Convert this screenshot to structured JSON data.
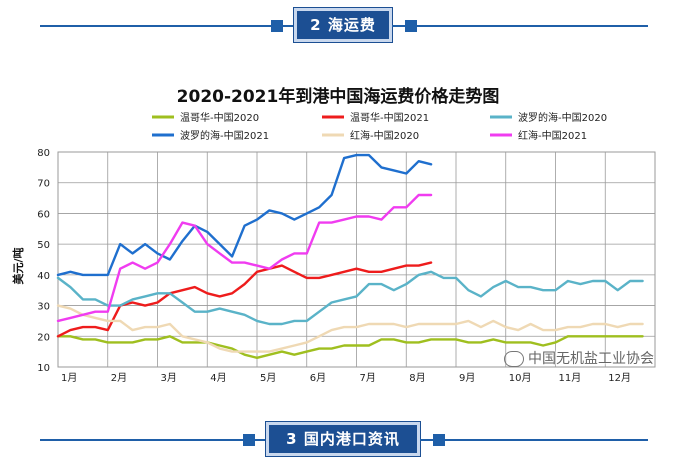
{
  "banners": {
    "top": "2 海运费",
    "bottom": "3 国内港口资讯"
  },
  "watermark": "中国无机盐工业协会",
  "colors": {
    "banner": "#1c4f93",
    "accent_line": "#1f5fa8"
  },
  "chart_data": {
    "type": "line",
    "title": "2020-2021年到港中国海运费价格走势图",
    "xlabel": "",
    "ylabel": "美元/吨",
    "ylim": [
      10,
      80
    ],
    "yticks": [
      10,
      20,
      30,
      40,
      50,
      60,
      70,
      80
    ],
    "xlim": [
      0,
      12
    ],
    "x_tick_positions": [
      0,
      1,
      2,
      3,
      4,
      5,
      6,
      7,
      8,
      9,
      10,
      11
    ],
    "x_tick_labels": [
      "1月",
      "2月",
      "3月",
      "4月",
      "5月",
      "6月",
      "7月",
      "8月",
      "9月",
      "10月",
      "11月",
      "12月"
    ],
    "grid": true,
    "legend_position": "top",
    "series": [
      {
        "name": "温哥华-中国2020",
        "color": "#9fbf1f",
        "x": [
          0,
          0.25,
          0.5,
          0.75,
          1,
          1.25,
          1.5,
          1.75,
          2,
          2.25,
          2.5,
          2.75,
          3,
          3.25,
          3.5,
          3.75,
          4,
          4.25,
          4.5,
          4.75,
          5,
          5.25,
          5.5,
          5.75,
          6,
          6.25,
          6.5,
          6.75,
          7,
          7.25,
          7.5,
          7.75,
          8,
          8.25,
          8.5,
          8.75,
          9,
          9.25,
          9.5,
          9.75,
          10,
          10.25,
          10.5,
          10.75,
          11,
          11.25,
          11.5,
          11.75
        ],
        "y": [
          20,
          20,
          19,
          19,
          18,
          18,
          18,
          19,
          19,
          20,
          18,
          18,
          18,
          17,
          16,
          14,
          13,
          14,
          15,
          14,
          15,
          16,
          16,
          17,
          17,
          17,
          19,
          19,
          18,
          18,
          19,
          19,
          19,
          18,
          18,
          19,
          18,
          18,
          18,
          17,
          18,
          20,
          20,
          20,
          20,
          20,
          20,
          20
        ]
      },
      {
        "name": "温哥华-中国2021",
        "color": "#ee1c1c",
        "x": [
          0,
          0.25,
          0.5,
          0.75,
          1,
          1.25,
          1.5,
          1.75,
          2,
          2.25,
          2.5,
          2.75,
          3,
          3.25,
          3.5,
          3.75,
          4,
          4.25,
          4.5,
          4.75,
          5,
          5.25,
          5.5,
          5.75,
          6,
          6.25,
          6.5,
          6.75,
          7,
          7.25,
          7.5
        ],
        "y": [
          20,
          22,
          23,
          23,
          22,
          30,
          31,
          30,
          31,
          34,
          35,
          36,
          34,
          33,
          34,
          37,
          41,
          42,
          43,
          41,
          39,
          39,
          40,
          41,
          42,
          41,
          41,
          42,
          43,
          43,
          44
        ]
      },
      {
        "name": "波罗的海-中国2020",
        "color": "#5ab3c8",
        "x": [
          0,
          0.25,
          0.5,
          0.75,
          1,
          1.25,
          1.5,
          1.75,
          2,
          2.25,
          2.5,
          2.75,
          3,
          3.25,
          3.5,
          3.75,
          4,
          4.25,
          4.5,
          4.75,
          5,
          5.25,
          5.5,
          5.75,
          6,
          6.25,
          6.5,
          6.75,
          7,
          7.25,
          7.5,
          7.75,
          8,
          8.25,
          8.5,
          8.75,
          9,
          9.25,
          9.5,
          9.75,
          10,
          10.25,
          10.5,
          10.75,
          11,
          11.25,
          11.5,
          11.75
        ],
        "y": [
          39,
          36,
          32,
          32,
          30,
          30,
          32,
          33,
          34,
          34,
          31,
          28,
          28,
          29,
          28,
          27,
          25,
          24,
          24,
          25,
          25,
          28,
          31,
          32,
          33,
          37,
          37,
          35,
          37,
          40,
          41,
          39,
          39,
          35,
          33,
          36,
          38,
          36,
          36,
          35,
          35,
          38,
          37,
          38,
          38,
          35,
          38,
          38
        ]
      },
      {
        "name": "波罗的海-中国2021",
        "color": "#1f6fce",
        "x": [
          0,
          0.25,
          0.5,
          0.75,
          1,
          1.25,
          1.5,
          1.75,
          2,
          2.25,
          2.5,
          2.75,
          3,
          3.25,
          3.5,
          3.75,
          4,
          4.25,
          4.5,
          4.75,
          5,
          5.25,
          5.5,
          5.75,
          6,
          6.25,
          6.5,
          6.75,
          7,
          7.25,
          7.5
        ],
        "y": [
          40,
          41,
          40,
          40,
          40,
          50,
          47,
          50,
          47,
          45,
          51,
          56,
          54,
          50,
          46,
          56,
          58,
          61,
          60,
          58,
          60,
          62,
          66,
          78,
          79,
          79,
          75,
          74,
          73,
          77,
          76
        ]
      },
      {
        "name": "红海-中国2020",
        "color": "#efd9b4",
        "x": [
          0,
          0.25,
          0.5,
          0.75,
          1,
          1.25,
          1.5,
          1.75,
          2,
          2.25,
          2.5,
          2.75,
          3,
          3.25,
          3.5,
          3.75,
          4,
          4.25,
          4.5,
          4.75,
          5,
          5.25,
          5.5,
          5.75,
          6,
          6.25,
          6.5,
          6.75,
          7,
          7.25,
          7.5,
          7.75,
          8,
          8.25,
          8.5,
          8.75,
          9,
          9.25,
          9.5,
          9.75,
          10,
          10.25,
          10.5,
          10.75,
          11,
          11.25,
          11.5,
          11.75
        ],
        "y": [
          30,
          29,
          27,
          26,
          25,
          25,
          22,
          23,
          23,
          24,
          20,
          19,
          18,
          16,
          15,
          15,
          15,
          15,
          16,
          17,
          18,
          20,
          22,
          23,
          23,
          24,
          24,
          24,
          23,
          24,
          24,
          24,
          24,
          25,
          23,
          25,
          23,
          22,
          24,
          22,
          22,
          23,
          23,
          24,
          24,
          23,
          24,
          24
        ]
      },
      {
        "name": "红海-中国2021",
        "color": "#f03cf0",
        "x": [
          0,
          0.25,
          0.5,
          0.75,
          1,
          1.25,
          1.5,
          1.75,
          2,
          2.25,
          2.5,
          2.75,
          3,
          3.25,
          3.5,
          3.75,
          4,
          4.25,
          4.5,
          4.75,
          5,
          5.25,
          5.5,
          5.75,
          6,
          6.25,
          6.5,
          6.75,
          7,
          7.25,
          7.5
        ],
        "y": [
          25,
          26,
          27,
          28,
          28,
          42,
          44,
          42,
          44,
          50,
          57,
          56,
          50,
          47,
          44,
          44,
          43,
          42,
          45,
          47,
          47,
          57,
          57,
          58,
          59,
          59,
          58,
          62,
          62,
          66,
          66
        ]
      }
    ]
  }
}
